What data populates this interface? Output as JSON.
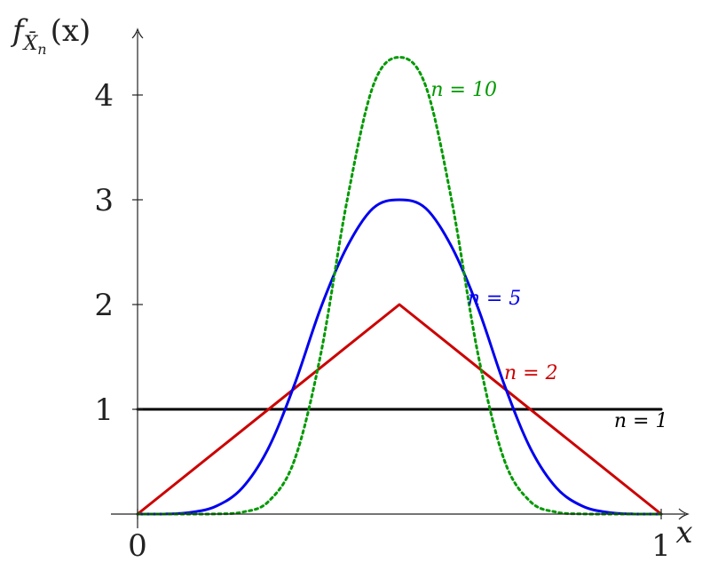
{
  "chart_data": {
    "type": "line",
    "x_axis": {
      "label": "x",
      "ticks": [
        "0",
        "1"
      ],
      "range": [
        0,
        1
      ]
    },
    "y_axis": {
      "label_base": "f",
      "label_sub": "X̄",
      "label_subsub": "n",
      "label_tail": "(x)",
      "ticks": [
        "1",
        "2",
        "3",
        "4"
      ],
      "range": [
        0,
        4.4
      ]
    },
    "grid": false,
    "series": [
      {
        "name": "n = 1",
        "color": "#000000",
        "dash": "none",
        "x": [
          0,
          1
        ],
        "y": [
          1,
          1
        ]
      },
      {
        "name": "n = 2",
        "color": "#cc0000",
        "dash": "none",
        "x": [
          0,
          0.5,
          1
        ],
        "y": [
          0,
          2,
          0
        ]
      },
      {
        "name": "n = 5",
        "color": "#0000ee",
        "dash": "none",
        "x": [
          0,
          0.05,
          0.1,
          0.15,
          0.2,
          0.25,
          0.3,
          0.35,
          0.4,
          0.45,
          0.5,
          0.55,
          0.6,
          0.65,
          0.7,
          0.75,
          0.8,
          0.85,
          0.9,
          0.95,
          1
        ],
        "y": [
          0,
          0.0005,
          0.015,
          0.075,
          0.25,
          0.63,
          1.24,
          1.97,
          2.55,
          2.92,
          3.0,
          2.92,
          2.55,
          1.97,
          1.24,
          0.63,
          0.25,
          0.075,
          0.015,
          0.0005,
          0
        ]
      },
      {
        "name": "n = 10",
        "color": "#009900",
        "dash": "3,4",
        "x": [
          0,
          0.05,
          0.1,
          0.15,
          0.2,
          0.25,
          0.3,
          0.35,
          0.4,
          0.45,
          0.5,
          0.55,
          0.6,
          0.65,
          0.7,
          0.75,
          0.8,
          0.85,
          0.9,
          0.95,
          1
        ],
        "y": [
          0,
          0,
          0.0001,
          0.001,
          0.018,
          0.12,
          0.52,
          1.53,
          2.99,
          4.09,
          4.36,
          4.09,
          2.99,
          1.53,
          0.52,
          0.12,
          0.018,
          0.001,
          0.0001,
          0,
          0
        ]
      }
    ],
    "annotations": [
      {
        "text": "n = 10",
        "x": 0.56,
        "y": 3.99
      },
      {
        "text": "n = 5",
        "x": 0.63,
        "y": 2.0
      },
      {
        "text": "n = 2",
        "x": 0.7,
        "y": 1.29
      },
      {
        "text": "n = 1",
        "x": 0.91,
        "y": 0.83
      }
    ]
  }
}
